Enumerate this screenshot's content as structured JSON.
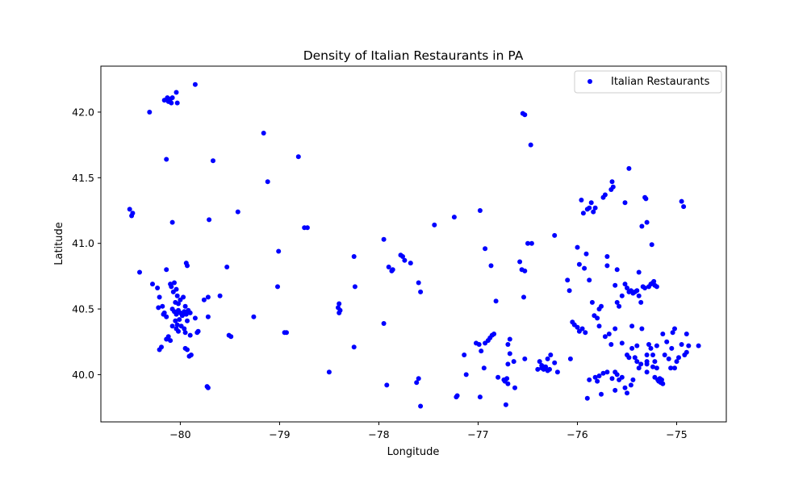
{
  "chart_data": {
    "type": "scatter",
    "title": "Density of Italian Restaurants in PA",
    "xlabel": "Longitude",
    "ylabel": "Latitude",
    "xlim": [
      -80.8,
      -74.5
    ],
    "ylim": [
      39.64,
      42.35
    ],
    "xticks": [
      -80,
      -79,
      -78,
      -77,
      -76,
      -75
    ],
    "yticks": [
      40.0,
      40.5,
      41.0,
      41.5,
      42.0
    ],
    "grid": false,
    "legend_position": "top-right",
    "color": "#0000ff",
    "series": [
      {
        "name": "Italian Restaurants",
        "points": [
          [
            -80.16,
            42.09
          ],
          [
            -80.13,
            42.11
          ],
          [
            -80.1,
            42.1
          ],
          [
            -80.08,
            42.11
          ],
          [
            -80.12,
            42.08
          ],
          [
            -80.04,
            42.15
          ],
          [
            -80.03,
            42.07
          ],
          [
            -80.09,
            42.07
          ],
          [
            -79.85,
            42.21
          ],
          [
            -80.31,
            42.0
          ],
          [
            -80.14,
            41.64
          ],
          [
            -79.67,
            41.63
          ],
          [
            -79.16,
            41.84
          ],
          [
            -79.12,
            41.47
          ],
          [
            -78.81,
            41.66
          ],
          [
            -80.51,
            41.26
          ],
          [
            -80.49,
            41.21
          ],
          [
            -80.48,
            41.23
          ],
          [
            -80.08,
            41.16
          ],
          [
            -79.71,
            41.18
          ],
          [
            -79.42,
            41.24
          ],
          [
            -78.75,
            41.12
          ],
          [
            -78.72,
            41.12
          ],
          [
            -80.41,
            40.78
          ],
          [
            -80.14,
            40.8
          ],
          [
            -79.94,
            40.85
          ],
          [
            -79.93,
            40.83
          ],
          [
            -79.53,
            40.82
          ],
          [
            -79.01,
            40.94
          ],
          [
            -79.02,
            40.67
          ],
          [
            -80.28,
            40.69
          ],
          [
            -80.23,
            40.66
          ],
          [
            -80.21,
            40.59
          ],
          [
            -80.22,
            40.51
          ],
          [
            -80.18,
            40.52
          ],
          [
            -80.16,
            40.47
          ],
          [
            -80.14,
            40.44
          ],
          [
            -80.17,
            40.46
          ],
          [
            -80.1,
            40.69
          ],
          [
            -80.09,
            40.67
          ],
          [
            -80.06,
            40.7
          ],
          [
            -80.07,
            40.63
          ],
          [
            -80.04,
            40.65
          ],
          [
            -80.03,
            40.6
          ],
          [
            -80.05,
            40.55
          ],
          [
            -80.02,
            40.54
          ],
          [
            -80.0,
            40.57
          ],
          [
            -80.08,
            40.5
          ],
          [
            -80.06,
            40.48
          ],
          [
            -80.04,
            40.46
          ],
          [
            -80.02,
            40.49
          ],
          [
            -80.0,
            40.47
          ],
          [
            -79.98,
            40.45
          ],
          [
            -79.96,
            40.48
          ],
          [
            -79.94,
            40.46
          ],
          [
            -79.92,
            40.49
          ],
          [
            -79.9,
            40.47
          ],
          [
            -79.97,
            40.59
          ],
          [
            -79.95,
            40.52
          ],
          [
            -80.01,
            40.42
          ],
          [
            -80.05,
            40.41
          ],
          [
            -80.03,
            40.38
          ],
          [
            -80.08,
            40.37
          ],
          [
            -80.04,
            40.35
          ],
          [
            -80.02,
            40.33
          ],
          [
            -79.99,
            40.37
          ],
          [
            -79.96,
            40.35
          ],
          [
            -79.95,
            40.32
          ],
          [
            -79.93,
            40.41
          ],
          [
            -79.85,
            40.43
          ],
          [
            -79.9,
            40.3
          ],
          [
            -79.82,
            40.33
          ],
          [
            -79.83,
            40.32
          ],
          [
            -80.12,
            40.29
          ],
          [
            -80.14,
            40.27
          ],
          [
            -80.1,
            40.26
          ],
          [
            -80.21,
            40.19
          ],
          [
            -80.19,
            40.21
          ],
          [
            -79.95,
            40.2
          ],
          [
            -79.93,
            40.19
          ],
          [
            -79.91,
            40.14
          ],
          [
            -79.89,
            40.15
          ],
          [
            -79.76,
            40.57
          ],
          [
            -79.72,
            40.59
          ],
          [
            -79.6,
            40.6
          ],
          [
            -79.72,
            40.44
          ],
          [
            -79.51,
            40.3
          ],
          [
            -79.49,
            40.29
          ],
          [
            -79.26,
            40.44
          ],
          [
            -79.73,
            39.91
          ],
          [
            -79.72,
            39.9
          ],
          [
            -78.95,
            40.32
          ],
          [
            -78.93,
            40.32
          ],
          [
            -78.5,
            40.02
          ],
          [
            -78.4,
            40.54
          ],
          [
            -78.41,
            40.51
          ],
          [
            -78.39,
            40.49
          ],
          [
            -78.4,
            40.47
          ],
          [
            -78.25,
            40.9
          ],
          [
            -78.24,
            40.67
          ],
          [
            -78.25,
            40.21
          ],
          [
            -77.95,
            41.03
          ],
          [
            -77.95,
            40.39
          ],
          [
            -77.92,
            39.92
          ],
          [
            -77.9,
            40.82
          ],
          [
            -77.87,
            40.79
          ],
          [
            -77.86,
            40.8
          ],
          [
            -77.78,
            40.91
          ],
          [
            -77.76,
            40.9
          ],
          [
            -77.74,
            40.87
          ],
          [
            -77.68,
            40.85
          ],
          [
            -77.6,
            40.7
          ],
          [
            -77.58,
            40.63
          ],
          [
            -77.62,
            39.94
          ],
          [
            -77.6,
            39.97
          ],
          [
            -77.58,
            39.76
          ],
          [
            -77.44,
            41.14
          ],
          [
            -77.24,
            41.2
          ],
          [
            -77.22,
            39.83
          ],
          [
            -77.21,
            39.84
          ],
          [
            -77.14,
            40.15
          ],
          [
            -77.12,
            40.0
          ],
          [
            -76.98,
            41.25
          ],
          [
            -76.93,
            40.96
          ],
          [
            -76.87,
            40.83
          ],
          [
            -76.82,
            40.56
          ],
          [
            -77.02,
            40.24
          ],
          [
            -76.99,
            40.23
          ],
          [
            -76.97,
            40.18
          ],
          [
            -76.93,
            40.24
          ],
          [
            -76.9,
            40.26
          ],
          [
            -76.88,
            40.28
          ],
          [
            -76.86,
            40.3
          ],
          [
            -76.84,
            40.31
          ],
          [
            -76.94,
            40.05
          ],
          [
            -76.98,
            39.83
          ],
          [
            -76.8,
            39.98
          ],
          [
            -76.74,
            39.96
          ],
          [
            -76.71,
            39.97
          ],
          [
            -76.7,
            39.93
          ],
          [
            -76.73,
            39.95
          ],
          [
            -76.7,
            40.08
          ],
          [
            -76.68,
            40.16
          ],
          [
            -76.64,
            40.1
          ],
          [
            -76.63,
            39.9
          ],
          [
            -76.68,
            40.27
          ],
          [
            -76.7,
            40.23
          ],
          [
            -76.72,
            39.77
          ],
          [
            -76.55,
            41.99
          ],
          [
            -76.53,
            41.98
          ],
          [
            -76.47,
            41.75
          ],
          [
            -76.5,
            41.0
          ],
          [
            -76.46,
            41.0
          ],
          [
            -76.58,
            40.86
          ],
          [
            -76.56,
            40.8
          ],
          [
            -76.53,
            40.79
          ],
          [
            -76.54,
            40.59
          ],
          [
            -76.53,
            40.12
          ],
          [
            -76.4,
            40.04
          ],
          [
            -76.38,
            40.1
          ],
          [
            -76.36,
            40.07
          ],
          [
            -76.34,
            40.04
          ],
          [
            -76.32,
            40.06
          ],
          [
            -76.3,
            40.03
          ],
          [
            -76.28,
            40.04
          ],
          [
            -76.3,
            40.12
          ],
          [
            -76.27,
            40.15
          ],
          [
            -76.23,
            40.09
          ],
          [
            -76.2,
            40.02
          ],
          [
            -76.34,
            40.06
          ],
          [
            -76.36,
            40.05
          ],
          [
            -76.23,
            41.06
          ],
          [
            -76.1,
            40.72
          ],
          [
            -76.08,
            40.64
          ],
          [
            -76.05,
            40.4
          ],
          [
            -76.07,
            40.12
          ],
          [
            -76.03,
            40.38
          ],
          [
            -76.0,
            40.36
          ],
          [
            -75.98,
            40.33
          ],
          [
            -75.95,
            40.35
          ],
          [
            -75.92,
            40.32
          ],
          [
            -76.0,
            40.97
          ],
          [
            -75.98,
            40.84
          ],
          [
            -75.96,
            41.33
          ],
          [
            -75.94,
            41.23
          ],
          [
            -75.91,
            40.92
          ],
          [
            -75.93,
            40.81
          ],
          [
            -75.9,
            41.26
          ],
          [
            -75.88,
            41.27
          ],
          [
            -75.86,
            41.31
          ],
          [
            -75.84,
            41.24
          ],
          [
            -75.82,
            41.27
          ],
          [
            -75.88,
            40.72
          ],
          [
            -75.85,
            40.55
          ],
          [
            -75.83,
            40.45
          ],
          [
            -75.8,
            40.43
          ],
          [
            -75.78,
            40.37
          ],
          [
            -75.78,
            40.5
          ],
          [
            -75.76,
            40.52
          ],
          [
            -75.74,
            41.35
          ],
          [
            -75.72,
            41.37
          ],
          [
            -75.66,
            41.41
          ],
          [
            -75.64,
            41.43
          ],
          [
            -75.65,
            41.47
          ],
          [
            -75.72,
            40.29
          ],
          [
            -75.68,
            40.31
          ],
          [
            -75.66,
            40.23
          ],
          [
            -75.62,
            40.35
          ],
          [
            -75.6,
            40.55
          ],
          [
            -75.58,
            40.52
          ],
          [
            -75.7,
            40.9
          ],
          [
            -75.7,
            40.83
          ],
          [
            -75.6,
            40.8
          ],
          [
            -75.62,
            40.68
          ],
          [
            -75.55,
            40.6
          ],
          [
            -75.52,
            41.31
          ],
          [
            -75.48,
            41.57
          ],
          [
            -75.55,
            40.24
          ],
          [
            -75.45,
            40.37
          ],
          [
            -75.5,
            40.15
          ],
          [
            -75.48,
            40.13
          ],
          [
            -75.45,
            40.2
          ],
          [
            -75.42,
            40.13
          ],
          [
            -75.4,
            40.1
          ],
          [
            -75.38,
            40.05
          ],
          [
            -75.35,
            40.35
          ],
          [
            -75.4,
            40.22
          ],
          [
            -75.38,
            40.78
          ],
          [
            -75.35,
            41.13
          ],
          [
            -75.3,
            41.16
          ],
          [
            -75.31,
            41.34
          ],
          [
            -75.32,
            41.35
          ],
          [
            -75.25,
            40.99
          ],
          [
            -75.52,
            40.69
          ],
          [
            -75.5,
            40.66
          ],
          [
            -75.48,
            40.63
          ],
          [
            -75.46,
            40.64
          ],
          [
            -75.44,
            40.62
          ],
          [
            -75.42,
            40.63
          ],
          [
            -75.4,
            40.64
          ],
          [
            -75.38,
            40.6
          ],
          [
            -75.36,
            40.55
          ],
          [
            -75.34,
            40.67
          ],
          [
            -75.32,
            40.66
          ],
          [
            -75.28,
            40.67
          ],
          [
            -75.24,
            40.7
          ],
          [
            -75.22,
            40.68
          ],
          [
            -75.2,
            40.67
          ],
          [
            -75.26,
            40.69
          ],
          [
            -75.23,
            40.71
          ],
          [
            -75.6,
            40.0
          ],
          [
            -75.58,
            39.96
          ],
          [
            -75.55,
            39.98
          ],
          [
            -75.52,
            39.9
          ],
          [
            -75.62,
            40.02
          ],
          [
            -75.65,
            39.97
          ],
          [
            -75.7,
            40.02
          ],
          [
            -75.74,
            40.01
          ],
          [
            -75.78,
            39.99
          ],
          [
            -75.82,
            39.98
          ],
          [
            -75.88,
            39.96
          ],
          [
            -75.9,
            39.82
          ],
          [
            -75.8,
            39.95
          ],
          [
            -75.76,
            39.85
          ],
          [
            -75.62,
            39.88
          ],
          [
            -75.5,
            39.86
          ],
          [
            -75.46,
            39.92
          ],
          [
            -75.44,
            39.96
          ],
          [
            -75.3,
            40.02
          ],
          [
            -75.3,
            40.08
          ],
          [
            -75.3,
            40.15
          ],
          [
            -75.28,
            40.23
          ],
          [
            -75.26,
            40.2
          ],
          [
            -75.24,
            40.15
          ],
          [
            -75.22,
            40.1
          ],
          [
            -75.2,
            40.05
          ],
          [
            -75.22,
            39.98
          ],
          [
            -75.24,
            40.06
          ],
          [
            -75.18,
            39.95
          ],
          [
            -75.16,
            39.94
          ],
          [
            -75.14,
            39.93
          ],
          [
            -75.17,
            39.97
          ],
          [
            -75.15,
            39.96
          ],
          [
            -75.19,
            39.96
          ],
          [
            -75.16,
            39.95
          ],
          [
            -75.2,
            40.22
          ],
          [
            -75.14,
            40.31
          ],
          [
            -75.12,
            40.15
          ],
          [
            -75.1,
            40.25
          ],
          [
            -75.08,
            40.12
          ],
          [
            -75.06,
            40.05
          ],
          [
            -75.05,
            40.2
          ],
          [
            -75.04,
            40.32
          ],
          [
            -75.02,
            40.35
          ],
          [
            -75.0,
            40.1
          ],
          [
            -74.98,
            40.13
          ],
          [
            -74.95,
            40.23
          ],
          [
            -74.92,
            40.15
          ],
          [
            -74.9,
            40.17
          ],
          [
            -74.88,
            40.22
          ],
          [
            -74.9,
            40.31
          ],
          [
            -74.78,
            40.22
          ],
          [
            -74.95,
            41.32
          ],
          [
            -74.93,
            41.28
          ],
          [
            -75.02,
            40.05
          ],
          [
            -75.3,
            40.1
          ],
          [
            -75.36,
            40.08
          ]
        ]
      }
    ]
  }
}
